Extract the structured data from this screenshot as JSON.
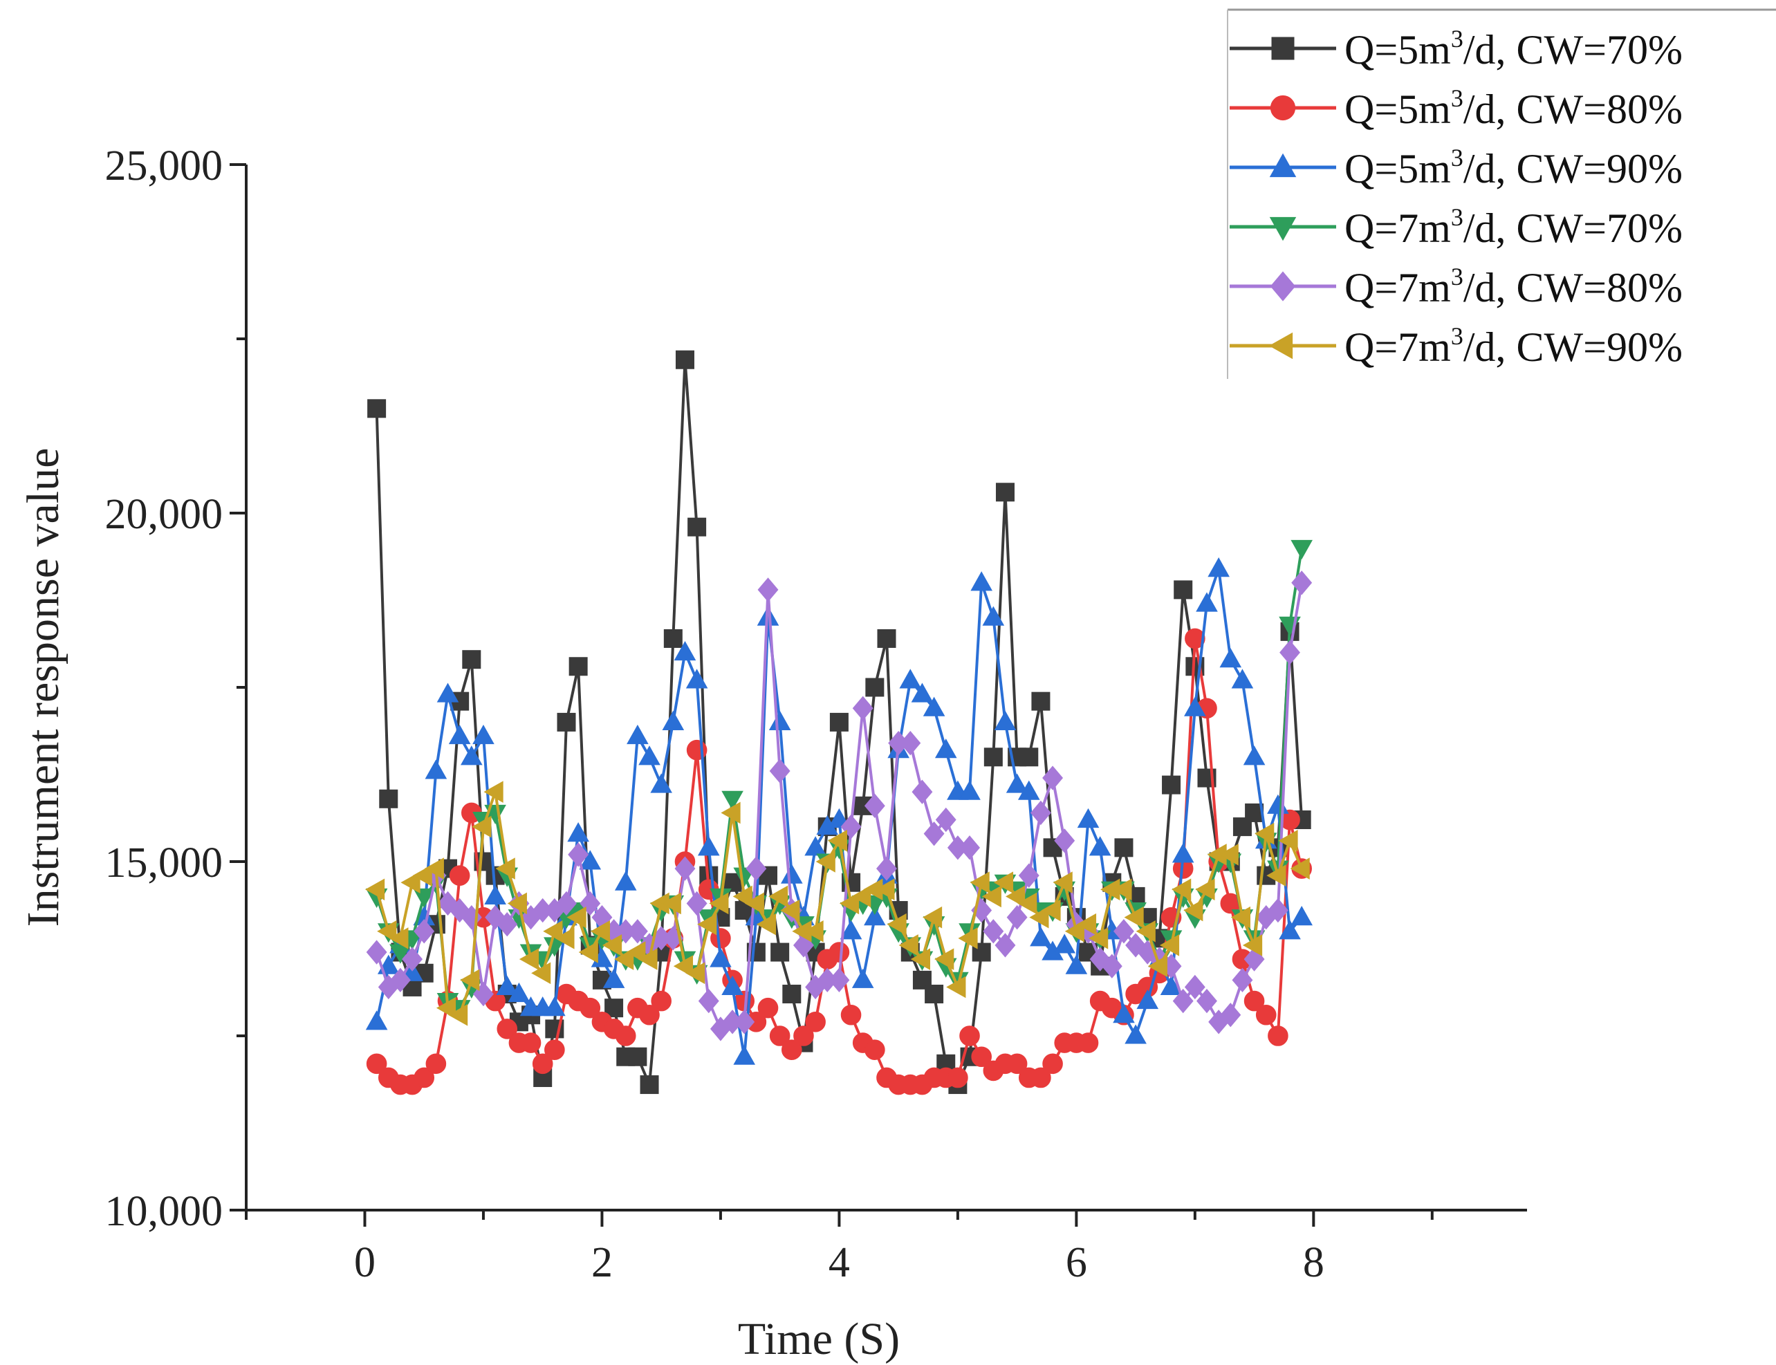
{
  "chart_data": {
    "type": "line",
    "title": "",
    "xlabel": "Time (S)",
    "ylabel": "Instrument response value",
    "xlim": [
      -1.0,
      9.8
    ],
    "ylim": [
      10000,
      25000
    ],
    "x_ticks": [
      0,
      2,
      4,
      6,
      8
    ],
    "x_tick_labels": [
      "0",
      "2",
      "4",
      "6",
      "8"
    ],
    "y_ticks": [
      10000,
      15000,
      20000,
      25000
    ],
    "y_tick_labels": [
      "10,000",
      "15,000",
      "20,000",
      "25,000"
    ],
    "grid": false,
    "legend_position": "top-right",
    "x": [
      0.1,
      0.2,
      0.3,
      0.4,
      0.5,
      0.6,
      0.7,
      0.8,
      0.9,
      1.0,
      1.1,
      1.2,
      1.3,
      1.4,
      1.5,
      1.6,
      1.7,
      1.8,
      1.9,
      2.0,
      2.1,
      2.2,
      2.3,
      2.4,
      2.5,
      2.6,
      2.7,
      2.8,
      2.9,
      3.0,
      3.1,
      3.2,
      3.3,
      3.4,
      3.5,
      3.6,
      3.7,
      3.8,
      3.9,
      4.0,
      4.1,
      4.2,
      4.3,
      4.4,
      4.5,
      4.6,
      4.7,
      4.8,
      4.9,
      5.0,
      5.1,
      5.2,
      5.3,
      5.4,
      5.5,
      5.6,
      5.7,
      5.8,
      5.9,
      6.0,
      6.1,
      6.2,
      6.3,
      6.4,
      6.5,
      6.6,
      6.7,
      6.8,
      6.9,
      7.0,
      7.1,
      7.2,
      7.3,
      7.4,
      7.5,
      7.6,
      7.7,
      7.8,
      7.9
    ],
    "series": [
      {
        "name": "Q=5m³/d, CW=70%",
        "label_main": "Q=5m",
        "label_sup": "3",
        "label_rest": "/d, CW=70%",
        "color": "#3a3a3a",
        "marker": "square",
        "values": [
          21500,
          15900,
          13700,
          13200,
          13400,
          14100,
          14900,
          17300,
          17900,
          15000,
          14800,
          13100,
          12700,
          12800,
          11900,
          12600,
          17000,
          17800,
          13800,
          13300,
          12900,
          12200,
          12200,
          11800,
          13700,
          18200,
          22200,
          19800,
          14800,
          14200,
          14700,
          14300,
          13700,
          14800,
          13700,
          13100,
          12400,
          13700,
          15500,
          17000,
          14700,
          15800,
          17500,
          18200,
          14300,
          13700,
          13300,
          13100,
          12100,
          11800,
          12200,
          13700,
          16500,
          20300,
          16500,
          16500,
          17300,
          15200,
          14500,
          14200,
          13700,
          13500,
          14700,
          15200,
          14500,
          14200,
          13900,
          16100,
          18900,
          17800,
          16200,
          15000,
          15000,
          15500,
          15700,
          14800,
          15200,
          18300,
          15600
        ]
      },
      {
        "name": "Q=5m³/d, CW=80%",
        "label_main": "Q=5m",
        "label_sup": "3",
        "label_rest": "/d, CW=80%",
        "color": "#e83a3a",
        "marker": "circle",
        "values": [
          12100,
          11900,
          11800,
          11800,
          11900,
          12100,
          13000,
          14800,
          15700,
          14200,
          13000,
          12600,
          12400,
          12400,
          12100,
          12300,
          13100,
          13000,
          12900,
          12700,
          12600,
          12500,
          12900,
          12800,
          13000,
          13900,
          15000,
          16600,
          14600,
          13900,
          13300,
          13000,
          12700,
          12900,
          12500,
          12300,
          12500,
          12700,
          13600,
          13700,
          12800,
          12400,
          12300,
          11900,
          11800,
          11800,
          11800,
          11900,
          11900,
          11900,
          12500,
          12200,
          12000,
          12100,
          12100,
          11900,
          11900,
          12100,
          12400,
          12400,
          12400,
          13000,
          12900,
          12800,
          13100,
          13200,
          13400,
          14200,
          14900,
          18200,
          17200,
          15000,
          14400,
          13600,
          13000,
          12800,
          12500,
          15600,
          14900
        ]
      },
      {
        "name": "Q=5m³/d, CW=90%",
        "label_main": "Q=5m",
        "label_sup": "3",
        "label_rest": "/d, CW=90%",
        "color": "#2a6fd6",
        "marker": "triangle-up",
        "values": [
          12700,
          13500,
          13800,
          13400,
          14200,
          16300,
          17400,
          16800,
          16500,
          16800,
          14500,
          13200,
          13100,
          12900,
          12900,
          12900,
          14200,
          15400,
          15000,
          13600,
          13300,
          14700,
          16800,
          16500,
          16100,
          17000,
          18000,
          17600,
          15200,
          13600,
          13200,
          12200,
          14200,
          18500,
          17000,
          14800,
          14200,
          15200,
          15500,
          15600,
          14000,
          13300,
          14200,
          14800,
          16600,
          17600,
          17400,
          17200,
          16600,
          16000,
          16000,
          19000,
          18500,
          17000,
          16100,
          16000,
          13900,
          13700,
          13800,
          13500,
          15600,
          15200,
          14000,
          12800,
          12500,
          13000,
          13600,
          13200,
          15100,
          17200,
          18700,
          19200,
          17900,
          17600,
          16500,
          15300,
          15800,
          14000,
          14200
        ]
      },
      {
        "name": "Q=7m³/d, CW=70%",
        "label_main": "Q=7m",
        "label_sup": "3",
        "label_rest": "/d, CW=70%",
        "color": "#2e9e5b",
        "marker": "triangle-down",
        "values": [
          14500,
          14000,
          13700,
          13900,
          14500,
          14700,
          13000,
          12900,
          13200,
          15600,
          15700,
          14800,
          14200,
          13700,
          13600,
          13800,
          14200,
          14300,
          13800,
          13900,
          13800,
          13600,
          13600,
          13800,
          14300,
          14400,
          13600,
          13400,
          14200,
          14500,
          15900,
          14800,
          14400,
          14200,
          14400,
          14200,
          14100,
          13900,
          15000,
          15200,
          14300,
          14400,
          14400,
          14500,
          14000,
          13800,
          13600,
          14100,
          13500,
          13300,
          14000,
          14600,
          14600,
          14700,
          14600,
          14500,
          14300,
          14300,
          14600,
          14000,
          14000,
          13900,
          14600,
          14600,
          14300,
          14000,
          13600,
          13900,
          14500,
          14200,
          14500,
          15000,
          15000,
          14200,
          13900,
          15300,
          14900,
          18400,
          19500
        ]
      },
      {
        "name": "Q=7m³/d, CW=80%",
        "label_main": "Q=7m",
        "label_sup": "3",
        "label_rest": "/d, CW=80%",
        "color": "#a678d8",
        "marker": "diamond",
        "values": [
          13700,
          13200,
          13300,
          13600,
          14000,
          14800,
          14400,
          14300,
          14200,
          13100,
          14200,
          14100,
          14400,
          14200,
          14300,
          14300,
          14400,
          15100,
          14400,
          14200,
          14000,
          14000,
          14000,
          13800,
          13900,
          13900,
          14900,
          14400,
          13000,
          12600,
          12700,
          12700,
          14900,
          18900,
          16300,
          14300,
          13800,
          13200,
          13300,
          13300,
          15500,
          17200,
          15800,
          14900,
          16700,
          16700,
          16000,
          15400,
          15600,
          15200,
          15200,
          14300,
          14000,
          13800,
          14200,
          14800,
          15700,
          16200,
          15300,
          14100,
          14000,
          13600,
          13500,
          14000,
          13800,
          13700,
          13600,
          13500,
          13000,
          13200,
          13000,
          12700,
          12800,
          13300,
          13600,
          14200,
          14300,
          18000,
          19000
        ]
      },
      {
        "name": "Q=7m³/d, CW=90%",
        "label_main": "Q=7m",
        "label_sup": "3",
        "label_rest": "/d, CW=90%",
        "color": "#c9a227",
        "marker": "triangle-left",
        "values": [
          14600,
          14000,
          13900,
          14700,
          14800,
          14900,
          12900,
          12800,
          13300,
          15500,
          16000,
          14900,
          14400,
          13600,
          13400,
          14000,
          13900,
          14200,
          13700,
          14000,
          13800,
          13600,
          13700,
          13600,
          14400,
          14400,
          13500,
          13400,
          14100,
          14400,
          15700,
          14500,
          14400,
          14100,
          14500,
          14300,
          14000,
          14000,
          15000,
          15300,
          14400,
          14500,
          14600,
          14600,
          14100,
          13800,
          13600,
          14200,
          13600,
          13200,
          13900,
          14700,
          14500,
          14700,
          14500,
          14400,
          14200,
          14300,
          14700,
          14000,
          14100,
          13900,
          14600,
          14600,
          14200,
          14000,
          13500,
          13800,
          14600,
          14300,
          14600,
          15100,
          15100,
          14200,
          13800,
          15400,
          14800,
          15300,
          14900
        ]
      }
    ]
  }
}
